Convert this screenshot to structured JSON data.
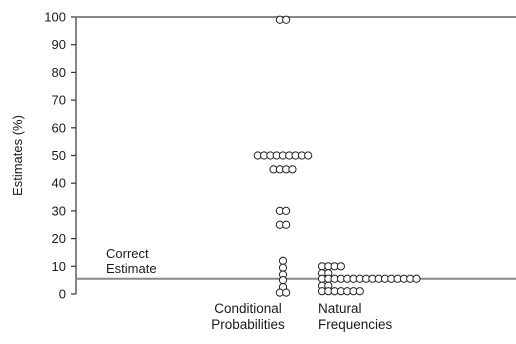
{
  "chart_data": {
    "type": "scatter",
    "title": "",
    "xlabel": "",
    "ylabel": "Estimates (%)",
    "ylim": [
      0,
      100
    ],
    "y_ticks": [
      0,
      10,
      20,
      30,
      40,
      50,
      60,
      70,
      80,
      90,
      100
    ],
    "grid": false,
    "categories": [
      {
        "id": "conditional",
        "label_lines": [
          "Conditional",
          "Probabilities"
        ]
      },
      {
        "id": "natural",
        "label_lines": [
          "Natural",
          "Frequencies"
        ]
      }
    ],
    "reference_line": {
      "value": 5.5,
      "label_lines": [
        "Correct",
        "Estimate"
      ]
    },
    "upper_line": {
      "value": 100
    },
    "series": [
      {
        "category": "conditional",
        "points": [
          {
            "y": 99,
            "count": 2
          },
          {
            "y": 50,
            "count": 9
          },
          {
            "y": 45,
            "count": 4
          },
          {
            "y": 30,
            "count": 2
          },
          {
            "y": 25,
            "count": 2
          },
          {
            "y": 12,
            "count": 1
          },
          {
            "y": 9.5,
            "count": 1
          },
          {
            "y": 7,
            "count": 1
          },
          {
            "y": 5,
            "count": 1
          },
          {
            "y": 2.5,
            "count": 1
          },
          {
            "y": 0.5,
            "count": 2
          }
        ]
      },
      {
        "category": "natural",
        "points": [
          {
            "y": 10,
            "count": 4
          },
          {
            "y": 7.5,
            "count": 2
          },
          {
            "y": 5.5,
            "count": 16
          },
          {
            "y": 3,
            "count": 2
          },
          {
            "y": 1,
            "count": 7
          }
        ]
      }
    ]
  }
}
